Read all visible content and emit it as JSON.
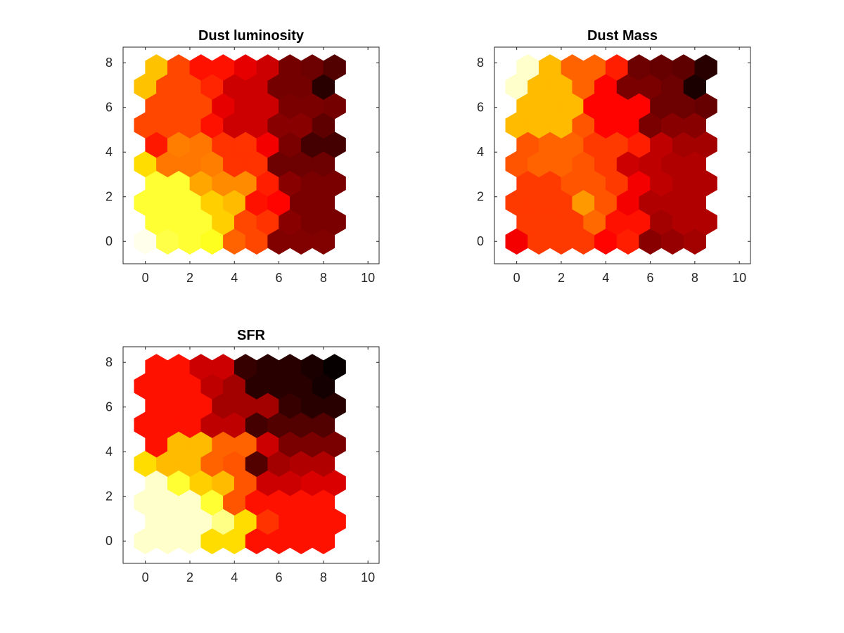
{
  "chart_data": [
    {
      "type": "heatmap",
      "layout": "hexagonal",
      "title": "Dust luminosity",
      "colormap": "hot",
      "grid": false,
      "xlim": [
        -1,
        10.5
      ],
      "ylim": [
        -1,
        8.7
      ],
      "xticks": [
        0,
        2,
        4,
        6,
        8,
        10
      ],
      "yticks": [
        0,
        2,
        4,
        6,
        8
      ],
      "row_y": [
        0,
        0.87,
        1.73,
        2.6,
        3.46,
        4.33,
        5.2,
        6.06,
        6.93,
        7.79
      ],
      "odd_row_x_offset": 0.5,
      "columns": 9,
      "values": [
        [
          0.98,
          0.82,
          0.8,
          0.78,
          0.52,
          0.48,
          0.19,
          0.19,
          0.19
        ],
        [
          0.8,
          0.8,
          0.8,
          0.68,
          0.48,
          0.45,
          0.2,
          0.18,
          0.18
        ],
        [
          0.8,
          0.8,
          0.8,
          0.68,
          0.65,
          0.4,
          0.38,
          0.18,
          0.18
        ],
        [
          0.8,
          0.8,
          0.62,
          0.58,
          0.58,
          0.42,
          0.2,
          0.18,
          0.18
        ],
        [
          0.7,
          0.55,
          0.55,
          0.56,
          0.45,
          0.45,
          0.16,
          0.16,
          0.16
        ],
        [
          0.41,
          0.56,
          0.55,
          0.45,
          0.45,
          0.36,
          0.18,
          0.1,
          0.1
        ],
        [
          0.48,
          0.48,
          0.48,
          0.4,
          0.3,
          0.3,
          0.2,
          0.2,
          0.14
        ],
        [
          0.48,
          0.48,
          0.48,
          0.34,
          0.3,
          0.3,
          0.18,
          0.18,
          0.17
        ],
        [
          0.66,
          0.48,
          0.48,
          0.43,
          0.3,
          0.3,
          0.17,
          0.17,
          0.06
        ],
        [
          0.66,
          0.48,
          0.4,
          0.4,
          0.34,
          0.3,
          0.17,
          0.16,
          0.12
        ]
      ]
    },
    {
      "type": "heatmap",
      "layout": "hexagonal",
      "title": "Dust Mass",
      "colormap": "hot",
      "grid": false,
      "xlim": [
        -1,
        10.5
      ],
      "ylim": [
        -1,
        8.7
      ],
      "xticks": [
        0,
        2,
        4,
        6,
        8,
        10
      ],
      "yticks": [
        0,
        2,
        4,
        6,
        8
      ],
      "row_y": [
        0,
        0.87,
        1.73,
        2.6,
        3.46,
        4.33,
        5.2,
        6.06,
        6.93,
        7.79
      ],
      "odd_row_x_offset": 0.5,
      "columns": 9,
      "values": [
        [
          0.36,
          0.46,
          0.46,
          0.46,
          0.38,
          0.42,
          0.2,
          0.22,
          0.24
        ],
        [
          0.46,
          0.46,
          0.46,
          0.53,
          0.4,
          0.4,
          0.24,
          0.26,
          0.26
        ],
        [
          0.46,
          0.46,
          0.46,
          0.6,
          0.5,
          0.36,
          0.26,
          0.26,
          0.26
        ],
        [
          0.46,
          0.46,
          0.5,
          0.5,
          0.46,
          0.36,
          0.28,
          0.26,
          0.26
        ],
        [
          0.5,
          0.52,
          0.52,
          0.5,
          0.46,
          0.3,
          0.28,
          0.26,
          0.26
        ],
        [
          0.5,
          0.52,
          0.52,
          0.46,
          0.46,
          0.42,
          0.28,
          0.24,
          0.24
        ],
        [
          0.65,
          0.65,
          0.65,
          0.5,
          0.38,
          0.38,
          0.18,
          0.2,
          0.2
        ],
        [
          0.65,
          0.65,
          0.65,
          0.38,
          0.38,
          0.38,
          0.16,
          0.16,
          0.15
        ],
        [
          0.95,
          0.65,
          0.65,
          0.52,
          0.38,
          0.18,
          0.18,
          0.16,
          0.04
        ],
        [
          0.95,
          0.65,
          0.52,
          0.52,
          0.42,
          0.16,
          0.15,
          0.14,
          0.06
        ]
      ]
    },
    {
      "type": "heatmap",
      "layout": "hexagonal",
      "title": "SFR",
      "colormap": "hot",
      "grid": false,
      "xlim": [
        -1,
        10.5
      ],
      "ylim": [
        -1,
        8.7
      ],
      "xticks": [
        0,
        2,
        4,
        6,
        8,
        10
      ],
      "yticks": [
        0,
        2,
        4,
        6,
        8
      ],
      "row_y": [
        0,
        0.87,
        1.73,
        2.6,
        3.46,
        4.33,
        5.2,
        6.06,
        6.93,
        7.79
      ],
      "odd_row_x_offset": 0.5,
      "columns": 9,
      "values": [
        [
          0.95,
          0.95,
          0.95,
          0.7,
          0.7,
          0.4,
          0.4,
          0.4,
          0.4
        ],
        [
          0.95,
          0.95,
          0.95,
          0.88,
          0.7,
          0.45,
          0.4,
          0.4,
          0.4
        ],
        [
          0.95,
          0.95,
          0.95,
          0.8,
          0.5,
          0.4,
          0.4,
          0.4,
          0.4
        ],
        [
          0.95,
          0.8,
          0.68,
          0.65,
          0.5,
          0.3,
          0.3,
          0.32,
          0.32
        ],
        [
          0.7,
          0.65,
          0.65,
          0.52,
          0.5,
          0.12,
          0.24,
          0.26,
          0.26
        ],
        [
          0.4,
          0.65,
          0.65,
          0.52,
          0.52,
          0.3,
          0.18,
          0.18,
          0.18
        ],
        [
          0.4,
          0.4,
          0.4,
          0.28,
          0.28,
          0.1,
          0.12,
          0.12,
          0.12
        ],
        [
          0.4,
          0.4,
          0.4,
          0.24,
          0.24,
          0.24,
          0.08,
          0.06,
          0.06
        ],
        [
          0.4,
          0.4,
          0.4,
          0.28,
          0.24,
          0.06,
          0.06,
          0.06,
          0.03
        ],
        [
          0.4,
          0.4,
          0.3,
          0.3,
          0.08,
          0.06,
          0.06,
          0.04,
          0.01
        ]
      ]
    }
  ]
}
